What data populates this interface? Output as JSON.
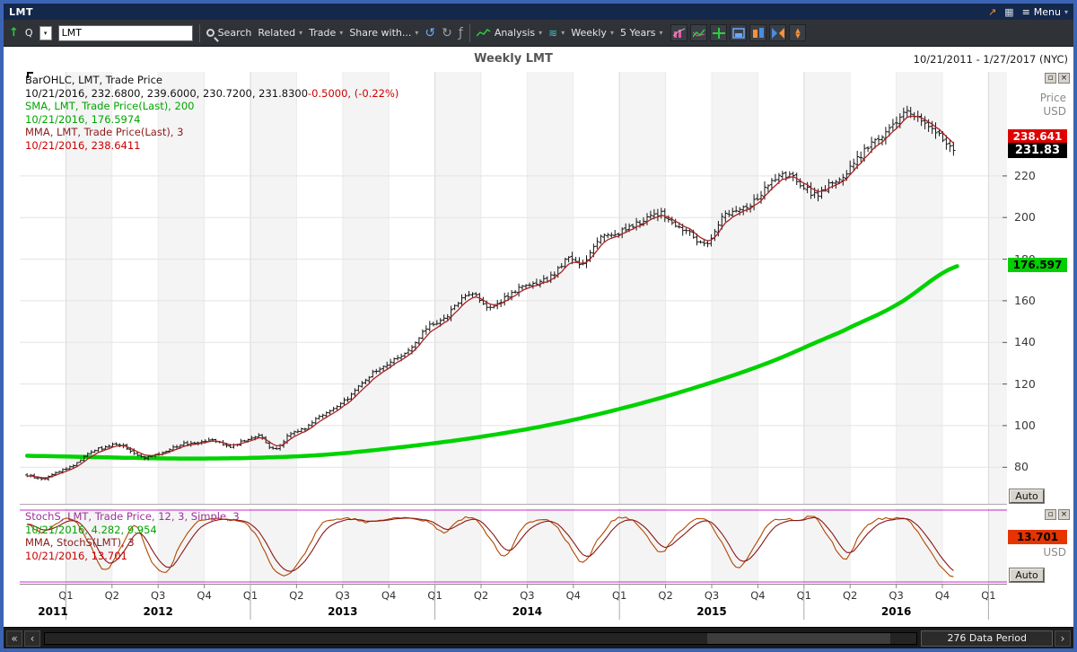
{
  "window": {
    "title": "LMT",
    "menu_label": "Menu"
  },
  "icons": {
    "up_arrow": "↑",
    "dropdown": "▾",
    "undo": "↺",
    "redo": "↻",
    "formula": "ƒ",
    "waves": "≋",
    "menu": "≡",
    "link_out": "↗",
    "grid": "▦",
    "restore": "▫",
    "close": "×",
    "left_fast": "«",
    "left": "‹",
    "right": "›"
  },
  "toolbar": {
    "q_label": "Q",
    "symbol_value": "LMT",
    "search_label": "Search",
    "related_label": "Related",
    "trade_label": "Trade",
    "share_label": "Share with...",
    "analysis_label": "Analysis",
    "period_label": "Weekly",
    "range_label": "5 Years"
  },
  "header": {
    "title": "Weekly LMT",
    "date_range": "10/21/2011 - 1/27/2017 (NYC)"
  },
  "legend_main": [
    [
      {
        "t": "BarOHLC, LMT, Trade Price",
        "c": "#111111"
      }
    ],
    [
      {
        "t": "10/21/2016, 232.6800, 239.6000, 230.7200, 231.8300",
        "c": "#111111"
      },
      {
        "t": "-0.5000, (-0.22%)",
        "c": "#cc0000"
      }
    ],
    [
      {
        "t": "SMA, LMT, Trade Price(Last),  200",
        "c": "#00a500"
      }
    ],
    [
      {
        "t": "10/21/2016, 176.5974",
        "c": "#00a500"
      }
    ],
    [
      {
        "t": "MMA, LMT, Trade Price(Last),  3",
        "c": "#8b1a1a"
      }
    ],
    [
      {
        "t": "10/21/2016, 238.6411",
        "c": "#cc0000"
      }
    ]
  ],
  "legend_stoch": [
    [
      {
        "t": "StochS, LMT, Trade Price,  12, 3, Simple, 3",
        "c": "#993399"
      }
    ],
    [
      {
        "t": "10/21/2016, 4.282, 9.954",
        "c": "#00a500"
      }
    ],
    [
      {
        "t": "MMA, StochS(LMT),  3",
        "c": "#8b1a1a"
      }
    ],
    [
      {
        "t": "10/21/2016, 13.701",
        "c": "#cc0000"
      }
    ]
  ],
  "axis_right": {
    "price_label": "Price",
    "currency": "USD",
    "auto_label": "Auto"
  },
  "badges": {
    "mma": "238.641",
    "last": "231.83",
    "sma": "176.597",
    "stoch": "13.701"
  },
  "scrollbar": {
    "period_label": "276 Data Period"
  },
  "chart_data": {
    "type": "ohlc",
    "title": "Weekly LMT",
    "symbol": "LMT",
    "interval": "Weekly",
    "visible_range": "10/21/2011 - 1/27/2017 (NYC)",
    "x_domain": [
      2011.75,
      2017.1
    ],
    "price_axis": {
      "label": "Price",
      "currency": "USD",
      "ticks": [
        220,
        200,
        180,
        160,
        140,
        120,
        100,
        80
      ],
      "ylim": [
        62,
        270
      ]
    },
    "last_bar": {
      "date": "10/21/2016",
      "open": 232.68,
      "high": 239.6,
      "low": 230.72,
      "close": 231.83,
      "change": -0.5,
      "change_pct": -0.22
    },
    "series": [
      {
        "name": "LMT Trade Price weekly close (sampled ~monthly)",
        "t_start": 2011.79,
        "t_end": 2016.81,
        "values": [
          76,
          74.5,
          78,
          81,
          87,
          89.5,
          91,
          86,
          85,
          88,
          91,
          92,
          93.5,
          90,
          92.5,
          95,
          88.5,
          96,
          99,
          105,
          108.5,
          115,
          123,
          128,
          133,
          138,
          148,
          151,
          160,
          163,
          156,
          162,
          166,
          168,
          172,
          180,
          178,
          190,
          192,
          195,
          199,
          202,
          196,
          192,
          187,
          200,
          204,
          207,
          215,
          220,
          217,
          211,
          216,
          221,
          230,
          238,
          243,
          251,
          246,
          240,
          231.83
        ]
      },
      {
        "name": "SMA 200-week",
        "color": "#00d200",
        "last": 176.5974,
        "t": [
          2011.79,
          2012.2,
          2012.6,
          2013.0,
          2013.4,
          2013.8,
          2014.2,
          2014.6,
          2015.0,
          2015.4,
          2015.8,
          2016.2,
          2016.5,
          2016.83
        ],
        "values": [
          85.5,
          84.8,
          84.2,
          84.5,
          86,
          89.5,
          94,
          100,
          108,
          118,
          130,
          145,
          158,
          176.6
        ]
      },
      {
        "name": "MMA 3-week of Trade Price",
        "derived_from": "close",
        "period": 3,
        "last": 238.6411,
        "color": "#aa2222"
      }
    ],
    "stochastics": {
      "name": "StochS 12, 3, Simple, 3",
      "range": [
        0,
        100
      ],
      "t_start": 2011.79,
      "t_end": 2016.81,
      "k_values": [
        82,
        70,
        85,
        88,
        55,
        15,
        45,
        80,
        30,
        12,
        55,
        85,
        90,
        88,
        85,
        60,
        15,
        10,
        40,
        80,
        88,
        90,
        85,
        88,
        92,
        90,
        85,
        70,
        88,
        90,
        60,
        35,
        75,
        88,
        85,
        55,
        25,
        60,
        88,
        90,
        70,
        40,
        65,
        85,
        88,
        55,
        18,
        45,
        82,
        90,
        88,
        92,
        60,
        30,
        70,
        88,
        90,
        88,
        60,
        25,
        4.282
      ],
      "k_last": 4.282,
      "d_last": 9.954,
      "mma_period": 3,
      "mma_last": 13.701,
      "colors": {
        "k": "#b34700",
        "mma": "#8b1616",
        "bounds": "#cc2bcc"
      }
    },
    "x_axis": {
      "quarter_t_start": 2012.0,
      "quarter_step": 0.25,
      "quarter_labels": [
        "Q1",
        "Q2",
        "Q3",
        "Q4",
        "Q1",
        "Q2",
        "Q3",
        "Q4",
        "Q1",
        "Q2",
        "Q3",
        "Q4",
        "Q1",
        "Q2",
        "Q3",
        "Q4",
        "Q1",
        "Q2",
        "Q3",
        "Q4",
        "Q1"
      ],
      "year_labels": [
        {
          "t": 2011.93,
          "label": "2011"
        },
        {
          "t": 2012.5,
          "label": "2012"
        },
        {
          "t": 2013.5,
          "label": "2013"
        },
        {
          "t": 2014.5,
          "label": "2014"
        },
        {
          "t": 2015.5,
          "label": "2015"
        },
        {
          "t": 2016.5,
          "label": "2016"
        }
      ],
      "year_boundaries": [
        2012,
        2013,
        2014,
        2015,
        2016,
        2017
      ]
    }
  }
}
